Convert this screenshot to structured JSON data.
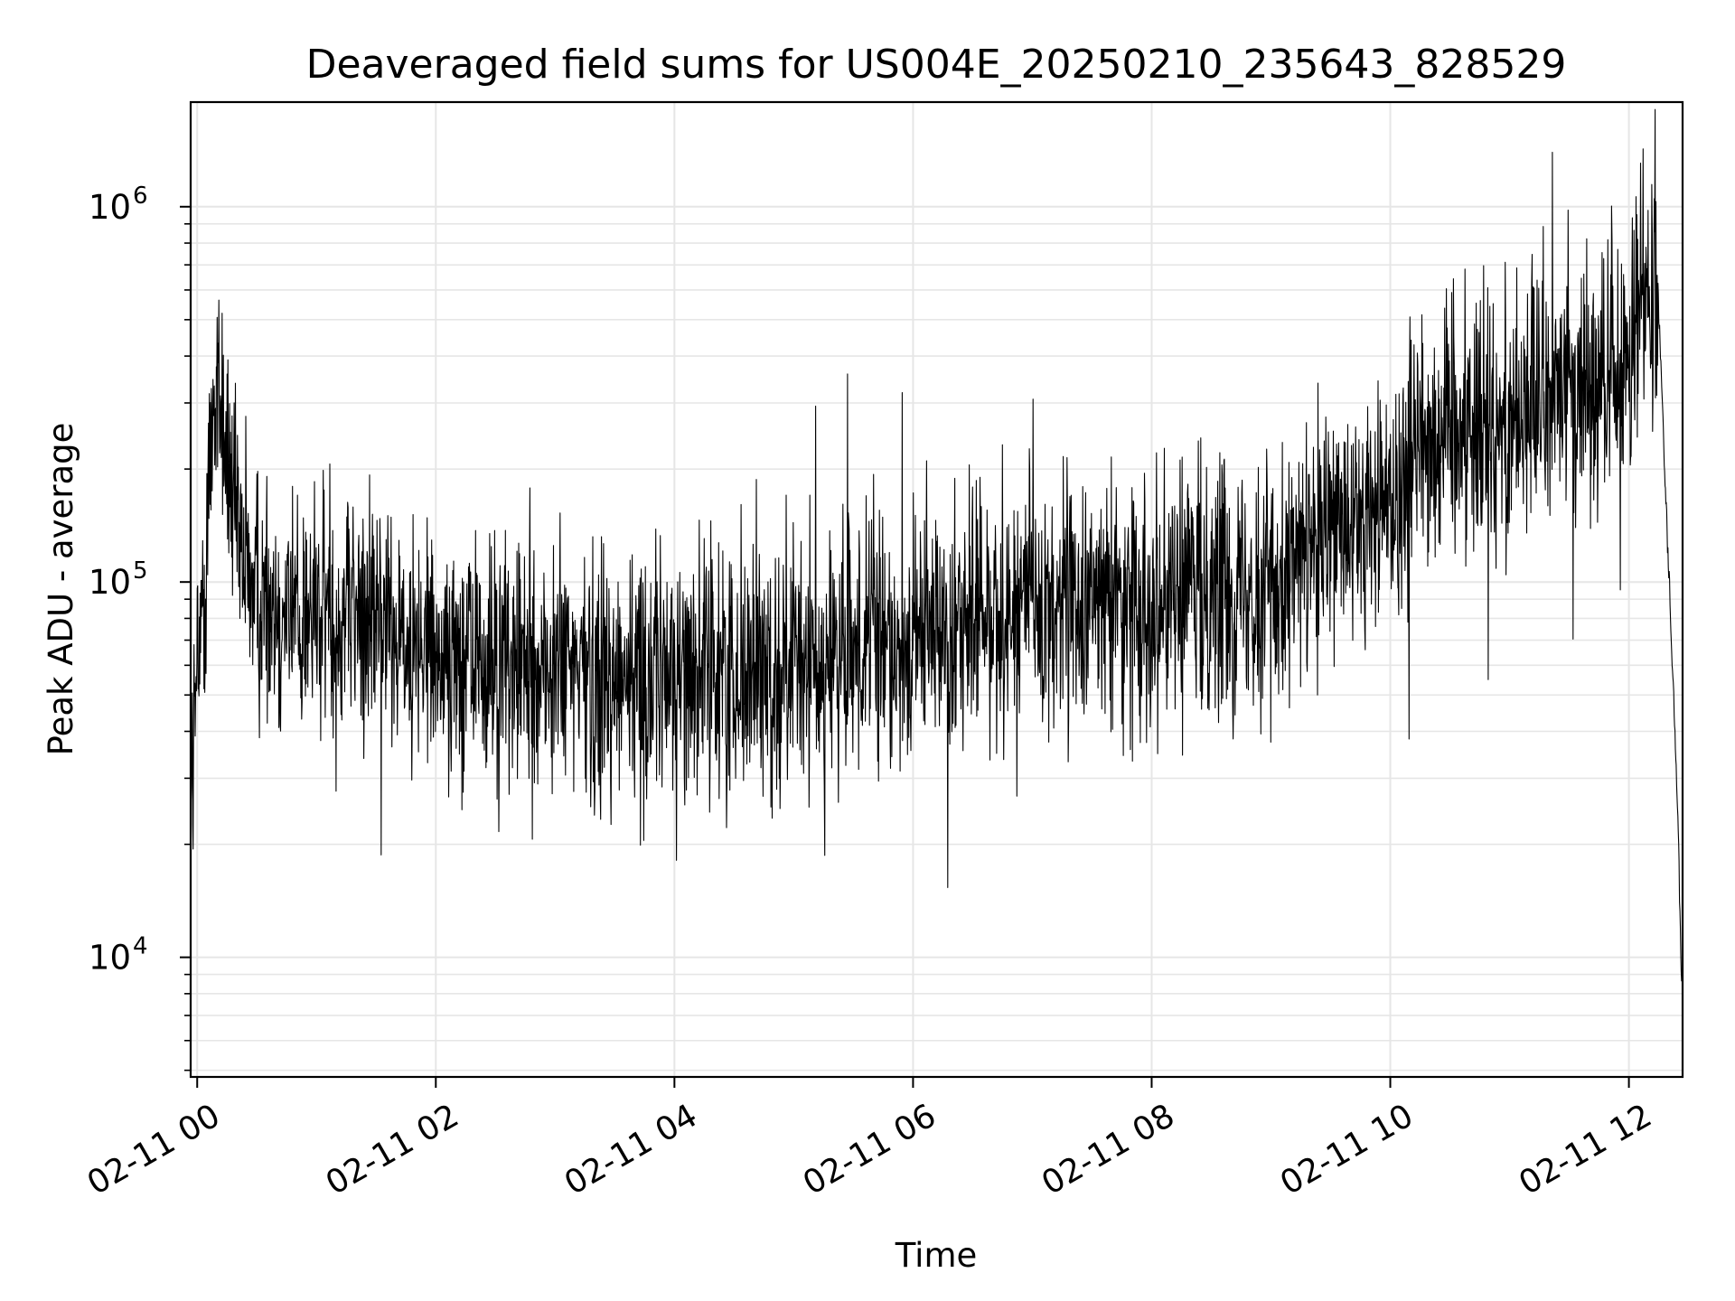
{
  "chart_data": {
    "type": "line",
    "title": "Deaveraged field sums for US004E_20250210_235643_828529",
    "xlabel": "Time",
    "ylabel": "Peak ADU - average",
    "xlim": [
      "2025-02-10T23:56:43",
      "2025-02-11T12:27:00"
    ],
    "ylim": [
      4800,
      1900000
    ],
    "yscale": "log",
    "grid": true,
    "line_color": "#000000",
    "grid_color": "#e6e6e6",
    "x_ticks": [
      {
        "t": "2025-02-11T00:00:00",
        "label": "02-11 00"
      },
      {
        "t": "2025-02-11T02:00:00",
        "label": "02-11 02"
      },
      {
        "t": "2025-02-11T04:00:00",
        "label": "02-11 04"
      },
      {
        "t": "2025-02-11T06:00:00",
        "label": "02-11 06"
      },
      {
        "t": "2025-02-11T08:00:00",
        "label": "02-11 08"
      },
      {
        "t": "2025-02-11T10:00:00",
        "label": "02-11 10"
      },
      {
        "t": "2025-02-11T12:00:00",
        "label": "02-11 12"
      }
    ],
    "y_ticks": [
      {
        "value": 10000,
        "base": "10",
        "exp": "4"
      },
      {
        "value": 100000,
        "base": "10",
        "exp": "5"
      },
      {
        "value": 1000000,
        "base": "10",
        "exp": "6"
      }
    ],
    "series": [
      {
        "x": [
          "2025-02-10T23:56:43",
          "2025-02-11T00:00:00",
          "2025-02-11T00:04:00",
          "2025-02-11T00:08:00",
          "2025-02-11T00:12:00",
          "2025-02-11T00:16:00",
          "2025-02-11T00:20:00",
          "2025-02-11T00:30:00",
          "2025-02-11T00:45:00",
          "2025-02-11T01:00:00",
          "2025-02-11T01:15:00",
          "2025-02-11T01:30:00",
          "2025-02-11T01:45:00",
          "2025-02-11T02:00:00",
          "2025-02-11T02:30:00",
          "2025-02-11T03:00:00",
          "2025-02-11T03:30:00",
          "2025-02-11T04:00:00",
          "2025-02-11T04:30:00",
          "2025-02-11T05:00:00",
          "2025-02-11T05:30:00",
          "2025-02-11T06:00:00",
          "2025-02-11T06:30:00",
          "2025-02-11T07:00:00",
          "2025-02-11T07:30:00",
          "2025-02-11T08:00:00",
          "2025-02-11T08:30:00",
          "2025-02-11T09:00:00",
          "2025-02-11T09:30:00",
          "2025-02-11T09:50:00",
          "2025-02-11T10:10:00",
          "2025-02-11T10:15:00",
          "2025-02-11T10:30:00",
          "2025-02-11T10:45:00",
          "2025-02-11T11:00:00",
          "2025-02-11T11:15:00",
          "2025-02-11T11:30:00",
          "2025-02-11T11:45:00",
          "2025-02-11T12:00:00",
          "2025-02-11T12:10:00",
          "2025-02-11T12:14:00",
          "2025-02-11T12:18:00",
          "2025-02-11T12:22:00",
          "2025-02-11T12:25:00",
          "2025-02-11T12:26:30"
        ],
        "y": [
          30000,
          50000,
          110000,
          320000,
          300000,
          200000,
          120000,
          95000,
          85000,
          80000,
          85000,
          80000,
          72000,
          65000,
          60000,
          58000,
          56000,
          57000,
          58000,
          60000,
          62000,
          70000,
          82000,
          85000,
          88000,
          90000,
          95000,
          105000,
          125000,
          150000,
          190000,
          260000,
          250000,
          260000,
          280000,
          300000,
          330000,
          330000,
          360000,
          700000,
          750000,
          200000,
          60000,
          20000,
          8000
        ]
      }
    ]
  }
}
